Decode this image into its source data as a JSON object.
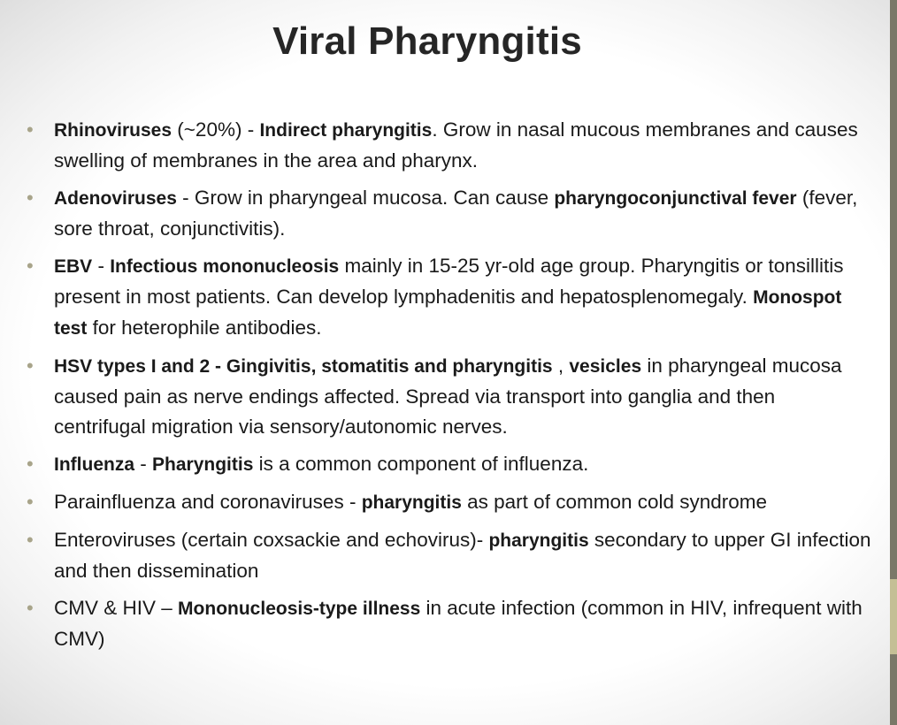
{
  "title": "Viral Pharyngitis",
  "bullet_glyph": "•",
  "colors": {
    "bullet": "#a8a48a",
    "side_bar": "#7a7868",
    "side_bar_accent": "#c4bf95"
  },
  "bullets": [
    {
      "b1": "Rhinoviruses",
      "t1": " (~20%) - ",
      "b2": "Indirect pharyngitis",
      "t2": ". Grow in nasal mucous membranes and causes swelling of membranes in the area and pharynx."
    },
    {
      "b1": "Adenoviruses",
      "t1": " - Grow in pharyngeal mucosa. Can cause ",
      "b2": "pharyngoconjunctival fever",
      "t2": " (fever, sore throat, conjunctivitis)."
    },
    {
      "b1": "EBV",
      "t1": " - ",
      "b2": "Infectious mononucleosis",
      "t2": " mainly in 15-25 yr-old age group.  Pharyngitis or tonsillitis present in most patients.  Can develop lymphadenitis and hepatosplenomegaly.   ",
      "b3": "Monospot test",
      "t3": "  for heterophile antibodies."
    },
    {
      "b1": "HSV types I and 2 - Gingivitis, stomatitis and  pharyngitis",
      "t1": "  , ",
      "b2": "vesicles",
      "t2": " in pharyngeal mucosa caused pain as nerve endings affected.  Spread via transport into ganglia and then centrifugal migration via sensory/autonomic nerves."
    },
    {
      "b1": "Influenza",
      "t1": " - ",
      "b2": "Pharyngitis",
      "t2": " is a common component of influenza."
    },
    {
      "t0": "Parainfluenza and coronaviruses -  ",
      "b1": "pharyngitis",
      "t1": " as part of common cold syndrome"
    },
    {
      "t0": "Enteroviruses (certain coxsackie and echovirus)- ",
      "b1": "pharyngitis",
      "t1": " secondary to upper GI infection and then dissemination"
    },
    {
      "t0": "CMV & HIV – ",
      "b1": "Mononucleosis-type illness",
      "t1": " in acute infection (common in HIV, infrequent with CMV)"
    }
  ]
}
